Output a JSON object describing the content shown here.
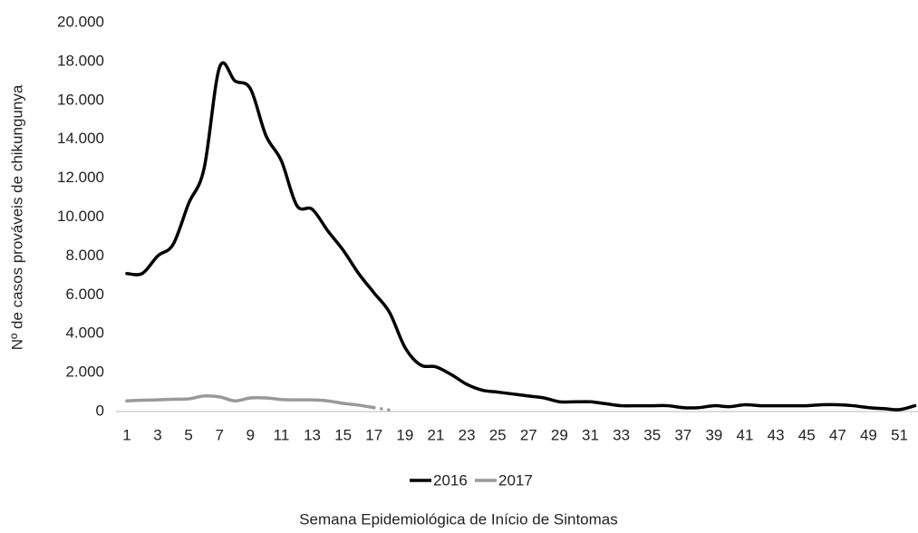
{
  "chart_data": {
    "type": "line",
    "xlabel": "Semana Epidemiológica de Início de Sintomas",
    "ylabel": "Nº de casos prováveis de chikungunya",
    "x": [
      1,
      2,
      3,
      4,
      5,
      6,
      7,
      8,
      9,
      10,
      11,
      12,
      13,
      14,
      15,
      16,
      17,
      18,
      19,
      20,
      21,
      22,
      23,
      24,
      25,
      26,
      27,
      28,
      29,
      30,
      31,
      32,
      33,
      34,
      35,
      36,
      37,
      38,
      39,
      40,
      41,
      42,
      43,
      44,
      45,
      46,
      47,
      48,
      49,
      50,
      51,
      52
    ],
    "xlim": [
      0.3,
      52.2
    ],
    "xticks": [
      1,
      3,
      5,
      7,
      9,
      11,
      13,
      15,
      17,
      19,
      21,
      23,
      25,
      27,
      29,
      31,
      33,
      35,
      37,
      39,
      41,
      43,
      45,
      47,
      49,
      51
    ],
    "ylim": [
      0,
      20000
    ],
    "yticks": [
      0,
      {
        "value": 2000,
        "label": "2.000"
      },
      {
        "value": 4000,
        "label": "4.000"
      },
      {
        "value": 6000,
        "label": "6.000"
      },
      {
        "value": 8000,
        "label": "8.000"
      },
      {
        "value": 10000,
        "label": "10.000"
      },
      {
        "value": 12000,
        "label": "12.000"
      },
      {
        "value": 14000,
        "label": "14.000"
      },
      {
        "value": 16000,
        "label": "16.000"
      },
      {
        "value": 18000,
        "label": "18.000"
      },
      {
        "value": 20000,
        "label": "20.000"
      }
    ],
    "grid": false,
    "legend": "bottom",
    "series": [
      {
        "name": "2016",
        "color": "#000000",
        "values": [
          7100,
          7100,
          8000,
          8600,
          10700,
          12500,
          17700,
          17000,
          16600,
          14200,
          12900,
          10600,
          10400,
          9300,
          8300,
          7100,
          6100,
          5100,
          3300,
          2400,
          2300,
          1900,
          1400,
          1100,
          1000,
          900,
          800,
          700,
          500,
          500,
          500,
          400,
          300,
          300,
          300,
          300,
          200,
          200,
          300,
          250,
          350,
          300,
          300,
          300,
          300,
          350,
          350,
          300,
          200,
          150,
          100,
          300
        ]
      },
      {
        "name": "2017",
        "color": "#999999",
        "dotted_from_x": 17,
        "values": [
          550,
          580,
          600,
          630,
          650,
          800,
          750,
          550,
          700,
          700,
          620,
          600,
          600,
          550,
          420,
          330,
          200,
          80,
          null,
          null,
          null,
          null,
          null,
          null,
          null,
          null,
          null,
          null,
          null,
          null,
          null,
          null,
          null,
          null,
          null,
          null,
          null,
          null,
          null,
          null,
          null,
          null,
          null,
          null,
          null,
          null,
          null,
          null,
          null,
          null,
          null,
          null
        ]
      }
    ]
  }
}
